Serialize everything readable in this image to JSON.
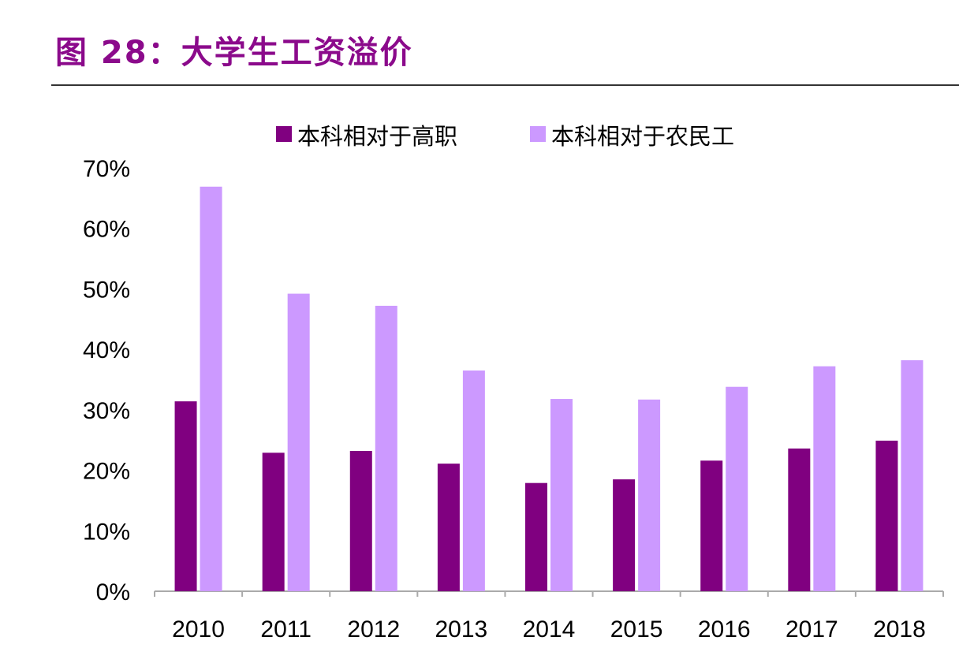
{
  "title": "图 28：大学生工资溢价",
  "chart_data": {
    "type": "bar",
    "categories": [
      "2010",
      "2011",
      "2012",
      "2013",
      "2014",
      "2015",
      "2016",
      "2017",
      "2018"
    ],
    "series": [
      {
        "name": "本科相对于高职",
        "color": "#800080",
        "values": [
          31.4,
          22.9,
          23.2,
          21.1,
          17.9,
          18.5,
          21.6,
          23.6,
          24.9
        ]
      },
      {
        "name": "本科相对于农民工",
        "color": "#CC99FF",
        "values": [
          66.9,
          49.2,
          47.2,
          36.5,
          31.8,
          31.7,
          33.8,
          37.2,
          38.2
        ]
      }
    ],
    "ylim": [
      0,
      70
    ],
    "yticks": [
      "0%",
      "10%",
      "20%",
      "30%",
      "40%",
      "50%",
      "60%",
      "70%"
    ],
    "grid": false,
    "legend": "top"
  }
}
